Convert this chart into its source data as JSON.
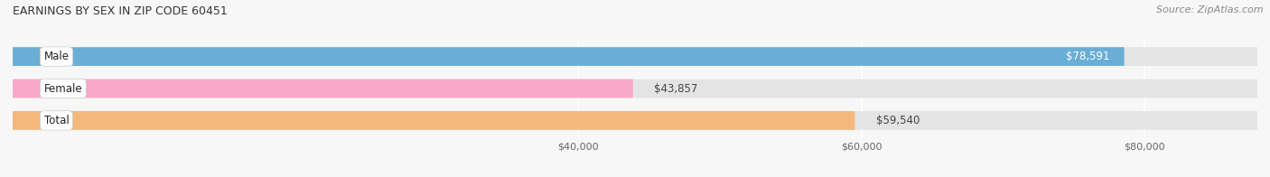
{
  "title": "EARNINGS BY SEX IN ZIP CODE 60451",
  "source": "Source: ZipAtlas.com",
  "categories": [
    "Male",
    "Female",
    "Total"
  ],
  "values": [
    78591,
    43857,
    59540
  ],
  "bar_colors": [
    "#6aaed6",
    "#f9a8c9",
    "#f4b87a"
  ],
  "bg_color": "#f7f7f7",
  "bar_bg_color": "#e4e4e4",
  "xmin": 0,
  "xmax": 88000,
  "xticks": [
    40000,
    60000,
    80000
  ],
  "xtick_labels": [
    "$40,000",
    "$60,000",
    "$80,000"
  ],
  "bar_height": 0.58,
  "figsize": [
    14.06,
    1.96
  ],
  "dpi": 100,
  "title_fontsize": 9,
  "source_fontsize": 8,
  "bar_label_fontsize": 8.5,
  "cat_label_fontsize": 8.5
}
